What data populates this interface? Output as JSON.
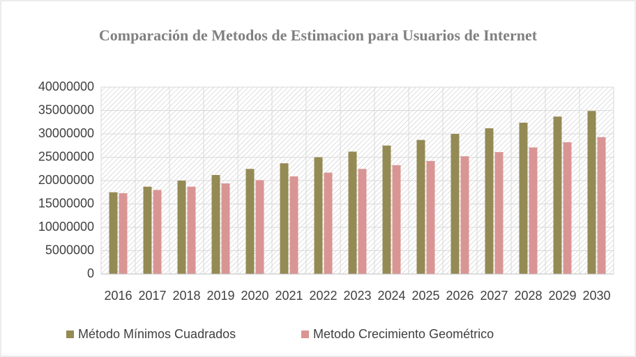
{
  "chart_data": {
    "type": "bar",
    "title": "Comparación de Metodos de Estimacion para Usuarios de Internet",
    "categories": [
      "2016",
      "2017",
      "2018",
      "2019",
      "2020",
      "2021",
      "2022",
      "2023",
      "2024",
      "2025",
      "2026",
      "2027",
      "2028",
      "2029",
      "2030"
    ],
    "series": [
      {
        "name": "Método Mínimos Cuadrados",
        "color": "#948a54",
        "values": [
          17500000,
          18700000,
          20000000,
          21200000,
          22500000,
          23700000,
          25000000,
          26200000,
          27500000,
          28700000,
          30000000,
          31200000,
          32400000,
          33700000,
          34900000
        ]
      },
      {
        "name": "Metodo Crecimiento Geométrico",
        "color": "#d99594",
        "values": [
          17300000,
          18000000,
          18700000,
          19400000,
          20100000,
          20900000,
          21700000,
          22500000,
          23300000,
          24200000,
          25200000,
          26100000,
          27100000,
          28200000,
          29300000
        ]
      }
    ],
    "ylim": [
      0,
      40000000
    ],
    "yticks": [
      0,
      5000000,
      10000000,
      15000000,
      20000000,
      25000000,
      30000000,
      35000000,
      40000000
    ],
    "grid": true,
    "legend": "bottom"
  }
}
